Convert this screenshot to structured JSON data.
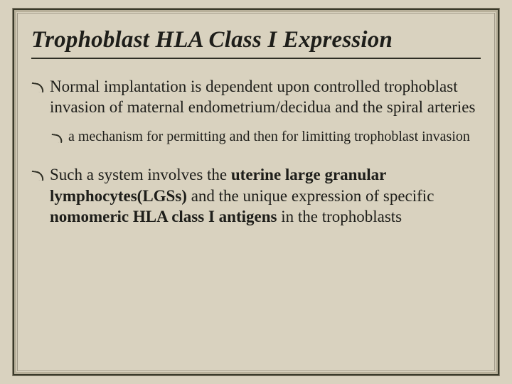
{
  "slide": {
    "title": "Trophoblast HLA Class I Expression",
    "bullets": [
      {
        "level": 1,
        "text": "Normal implantation is dependent upon controlled trophoblast invasion of maternal endometrium/decidua and the spiral arteries"
      },
      {
        "level": 2,
        "text": "a mechanism for permitting and then for limitting trophoblast invasion"
      },
      {
        "level": 1,
        "prefix": "Such a system involves the ",
        "bold1": "uterine large granular lymphocytes(LGSs)",
        "mid": " and the unique expression of specific ",
        "bold2": "nomomeric HLA class I antigens",
        "suffix": " in the trophoblasts"
      }
    ]
  },
  "style": {
    "background_color": "#d9d2bf",
    "title_fontsize": 33,
    "title_italic": true,
    "title_bold": true,
    "body_fontsize_l1": 23,
    "body_fontsize_l2": 20,
    "text_color": "#1e1e1a",
    "frame_border_color": "#3a3a2a",
    "underline_color": "#2e2e24"
  }
}
